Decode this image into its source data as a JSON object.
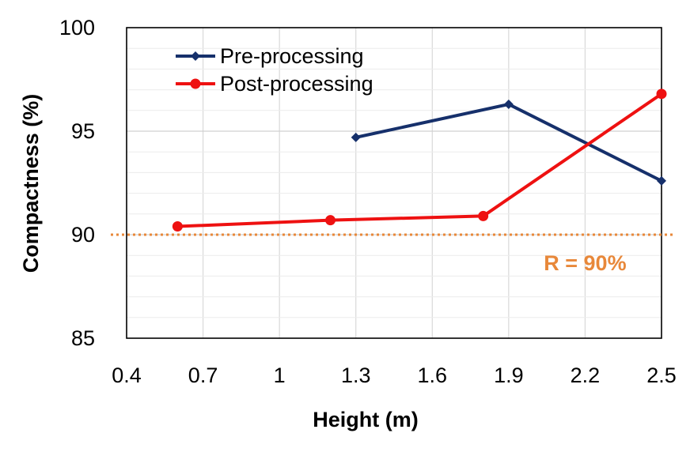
{
  "chart_data": {
    "type": "line",
    "xlabel": "Height (m)",
    "ylabel": "Compactness (%)",
    "xlim": [
      0.4,
      2.5
    ],
    "ylim": [
      85,
      100
    ],
    "x_ticks": [
      "0.4",
      "0.7",
      "1",
      "1.3",
      "1.6",
      "1.9",
      "2.2",
      "2.5"
    ],
    "y_ticks": [
      "85",
      "90",
      "95",
      "100"
    ],
    "grid": "on",
    "legend_position": "top-left",
    "series": [
      {
        "name": "Pre-processing",
        "color": "#16306b",
        "marker": "diamond",
        "x": [
          1.3,
          1.9,
          2.5
        ],
        "y": [
          94.7,
          96.3,
          92.6
        ]
      },
      {
        "name": "Post-processing",
        "color": "#ee1111",
        "marker": "circle",
        "x": [
          0.6,
          1.2,
          1.8,
          2.5
        ],
        "y": [
          90.4,
          90.7,
          90.9,
          96.8
        ]
      }
    ],
    "reference_line": {
      "y": 90,
      "label": "R = 90%",
      "color": "#e8883a",
      "style": "dotted"
    }
  }
}
